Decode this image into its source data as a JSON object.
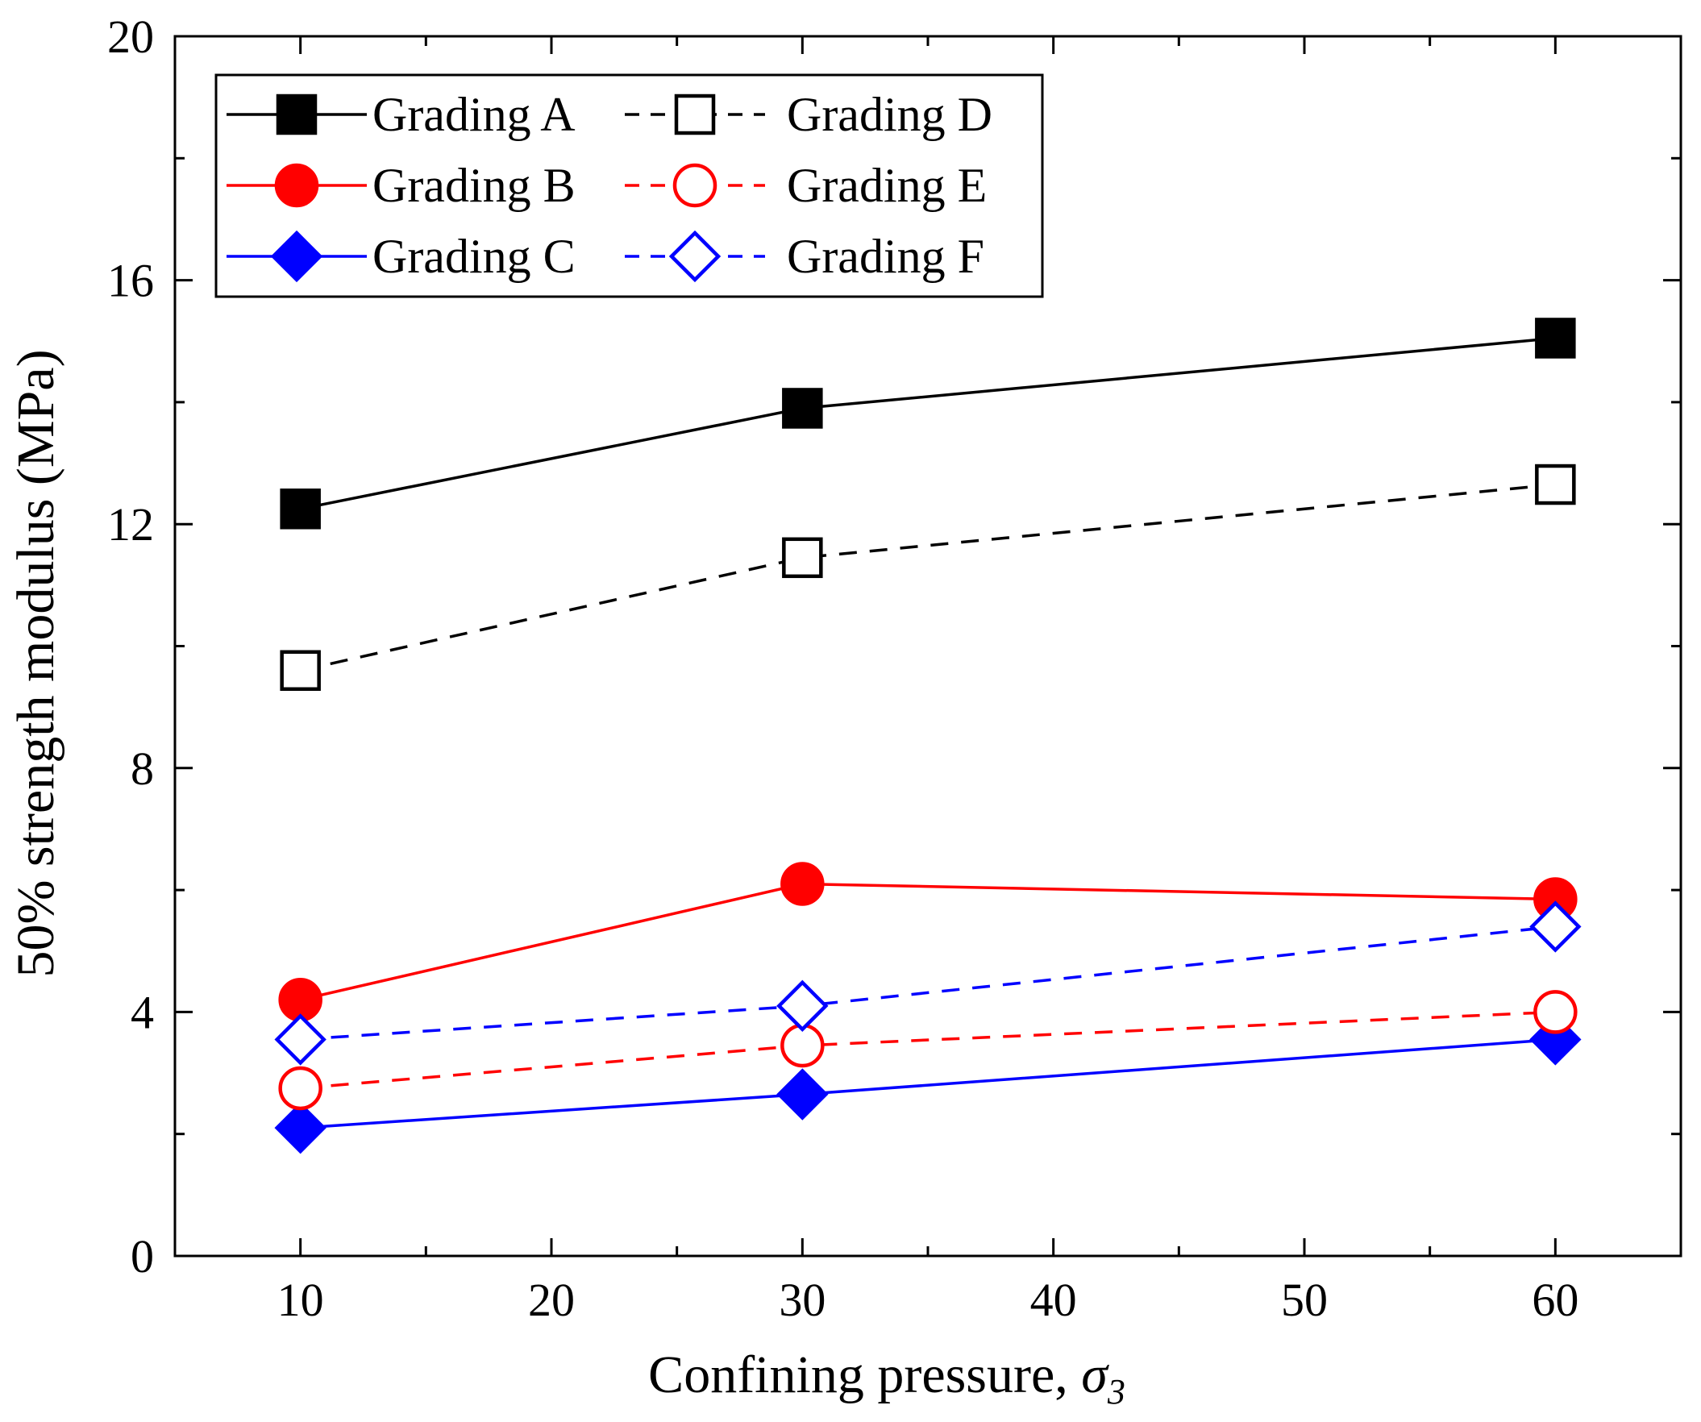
{
  "chart_data": {
    "type": "line",
    "title": "",
    "xlabel": "Confining pressure, ",
    "xlabel_symbol": "σ",
    "xlabel_subscript": "3",
    "ylabel": "50% strength modulus (MPa)",
    "xlim": [
      5,
      65
    ],
    "ylim": [
      0,
      20
    ],
    "x_ticks": [
      10,
      20,
      30,
      40,
      50,
      60
    ],
    "y_ticks": [
      0,
      4,
      8,
      12,
      16,
      20
    ],
    "grid": false,
    "legend_position": "top-left",
    "x": [
      10,
      30,
      60
    ],
    "series": [
      {
        "name": "Grading A",
        "values": [
          12.25,
          13.9,
          15.05
        ],
        "color": "#000000",
        "marker": "square",
        "filled": true,
        "dashed": false
      },
      {
        "name": "Grading B",
        "values": [
          4.2,
          6.1,
          5.85
        ],
        "color": "#ff0000",
        "marker": "circle",
        "filled": true,
        "dashed": false
      },
      {
        "name": "Grading C",
        "values": [
          2.1,
          2.65,
          3.55
        ],
        "color": "#0000ff",
        "marker": "diamond",
        "filled": true,
        "dashed": false
      },
      {
        "name": "Grading D",
        "values": [
          9.6,
          11.45,
          12.65
        ],
        "color": "#000000",
        "marker": "square",
        "filled": false,
        "dashed": true
      },
      {
        "name": "Grading E",
        "values": [
          2.75,
          3.45,
          4.0
        ],
        "color": "#ff0000",
        "marker": "circle",
        "filled": false,
        "dashed": true
      },
      {
        "name": "Grading F",
        "values": [
          3.55,
          4.1,
          5.4
        ],
        "color": "#0000ff",
        "marker": "diamond",
        "filled": false,
        "dashed": true
      }
    ]
  }
}
